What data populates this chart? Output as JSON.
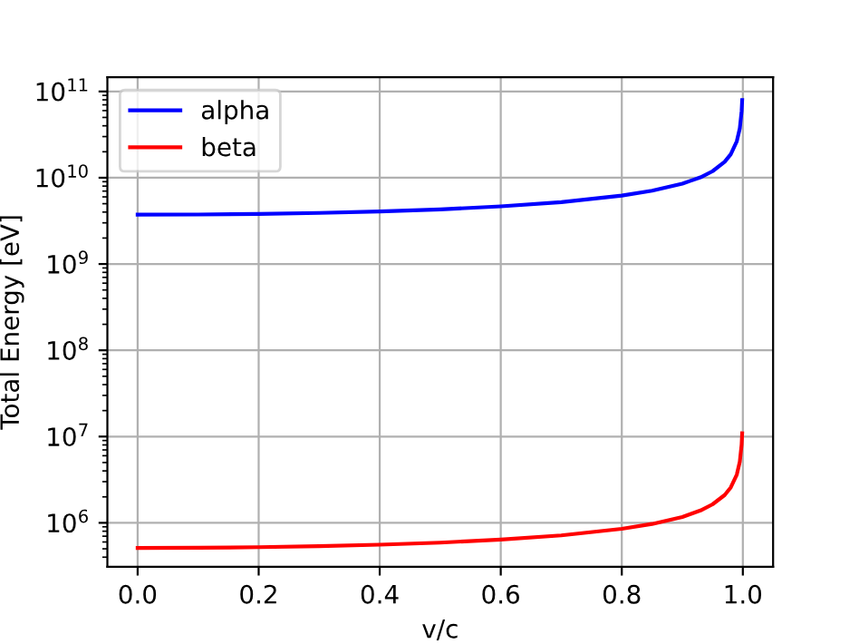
{
  "chart_data": {
    "type": "line",
    "xlabel": "v/c",
    "ylabel": "Total Energy [eV]",
    "log": "y",
    "grid": true,
    "legend": "top left",
    "x": [
      0,
      0.1,
      0.2,
      0.3,
      0.4,
      0.5,
      0.6,
      0.7,
      0.8,
      0.85,
      0.9,
      0.93,
      0.95,
      0.97,
      0.98,
      0.99,
      0.995,
      0.998,
      0.9989
    ],
    "series": [
      {
        "name": "alpha",
        "color": "#0000ff",
        "values": [
          3730000000.0,
          3750000000.0,
          3800000000.0,
          3910000000.0,
          4070000000.0,
          4300000000.0,
          4660000000.0,
          5220000000.0,
          6210000000.0,
          7070000000.0,
          8550000000.0,
          10100000000.0,
          11900000000.0,
          15300000000.0,
          18700000000.0,
          26400000000.0,
          37300000000.0,
          59000000000.0,
          79500000000.0
        ]
      },
      {
        "name": "beta",
        "color": "#ff0000",
        "values": [
          511000.0,
          514000.0,
          522000.0,
          536000.0,
          558000.0,
          590000.0,
          639000.0,
          716000.0,
          852000.0,
          970000.0,
          1170000.0,
          1390000.0,
          1640000.0,
          2100000.0,
          2570000.0,
          3620000.0,
          5120000.0,
          8080000.0,
          10900000.0
        ]
      }
    ],
    "xlim": [
      -0.05,
      1.05
    ],
    "ylim": [
      310000.0,
      146000000000.0
    ],
    "xticks": [
      {
        "value": 0,
        "label": "0.0"
      },
      {
        "value": 0.2,
        "label": "0.2"
      },
      {
        "value": 0.4,
        "label": "0.4"
      },
      {
        "value": 0.6,
        "label": "0.6"
      },
      {
        "value": 0.8,
        "label": "0.8"
      },
      {
        "value": 1,
        "label": "1.0"
      }
    ],
    "yticks": [
      {
        "value": 1000000.0,
        "label": "10$^{6}$"
      },
      {
        "value": 10000000.0,
        "label": "10$^{7}$"
      },
      {
        "value": 100000000.0,
        "label": "10$^{8}$"
      },
      {
        "value": 1000000000.0,
        "label": "10$^{9}$"
      },
      {
        "value": 10000000000.0,
        "label": "10$^{10}$"
      },
      {
        "value": 100000000000.0,
        "label": "10$^{11}$"
      }
    ]
  }
}
